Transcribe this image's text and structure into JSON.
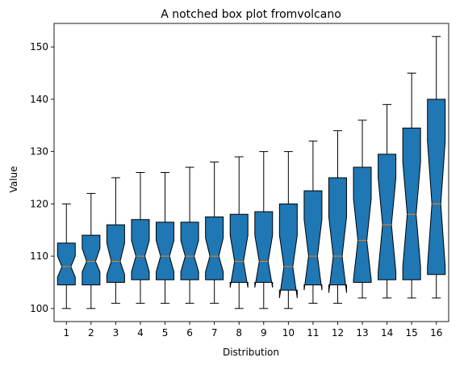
{
  "chart_data": {
    "type": "box",
    "notched": true,
    "title": "A notched box plot fromvolcano",
    "xlabel": "Distribution",
    "ylabel": "Value",
    "ylim": [
      97.5,
      154.5
    ],
    "yticks": [
      100,
      110,
      120,
      130,
      140,
      150
    ],
    "categories": [
      "1",
      "2",
      "3",
      "4",
      "5",
      "6",
      "7",
      "8",
      "9",
      "10",
      "11",
      "12",
      "13",
      "14",
      "15",
      "16"
    ],
    "box_color": "#1f77b4",
    "median_color": "#ff7f0e",
    "boxes": [
      {
        "whisker_low": 100,
        "q1": 104.5,
        "median": 108,
        "q3": 112.5,
        "whisker_high": 120,
        "notch_low": 106,
        "notch_high": 110
      },
      {
        "whisker_low": 100,
        "q1": 104.5,
        "median": 109,
        "q3": 114,
        "whisker_high": 122,
        "notch_low": 107,
        "notch_high": 111.5
      },
      {
        "whisker_low": 101,
        "q1": 105,
        "median": 109,
        "q3": 116,
        "whisker_high": 125,
        "notch_low": 106.5,
        "notch_high": 112.5
      },
      {
        "whisker_low": 101,
        "q1": 105.5,
        "median": 110,
        "q3": 117,
        "whisker_high": 126,
        "notch_low": 107,
        "notch_high": 113
      },
      {
        "whisker_low": 101,
        "q1": 105.5,
        "median": 110,
        "q3": 116.5,
        "whisker_high": 126,
        "notch_low": 107,
        "notch_high": 113
      },
      {
        "whisker_low": 101,
        "q1": 105.5,
        "median": 110,
        "q3": 116.5,
        "whisker_high": 127,
        "notch_low": 107,
        "notch_high": 113
      },
      {
        "whisker_low": 101,
        "q1": 105.5,
        "median": 110,
        "q3": 117.5,
        "whisker_high": 128,
        "notch_low": 107,
        "notch_high": 113.5
      },
      {
        "whisker_low": 100,
        "q1": 105,
        "median": 109,
        "q3": 118,
        "whisker_high": 129,
        "notch_low": 104,
        "notch_high": 114
      },
      {
        "whisker_low": 100,
        "q1": 105,
        "median": 109,
        "q3": 118.5,
        "whisker_high": 130,
        "notch_low": 104,
        "notch_high": 114
      },
      {
        "whisker_low": 100,
        "q1": 103.5,
        "median": 108,
        "q3": 120,
        "whisker_high": 130,
        "notch_low": 102,
        "notch_high": 114
      },
      {
        "whisker_low": 101,
        "q1": 104.5,
        "median": 110,
        "q3": 122.5,
        "whisker_high": 132,
        "notch_low": 103.5,
        "notch_high": 117
      },
      {
        "whisker_low": 101,
        "q1": 104.5,
        "median": 110,
        "q3": 125,
        "whisker_high": 134,
        "notch_low": 103,
        "notch_high": 117.5
      },
      {
        "whisker_low": 102,
        "q1": 105,
        "median": 113,
        "q3": 127,
        "whisker_high": 136,
        "notch_low": 105.5,
        "notch_high": 121
      },
      {
        "whisker_low": 102,
        "q1": 105.5,
        "median": 116,
        "q3": 129.5,
        "whisker_high": 139,
        "notch_low": 107,
        "notch_high": 125
      },
      {
        "whisker_low": 102,
        "q1": 105.5,
        "median": 118,
        "q3": 134.5,
        "whisker_high": 145,
        "notch_low": 108,
        "notch_high": 128
      },
      {
        "whisker_low": 102,
        "q1": 106.5,
        "median": 120,
        "q3": 140,
        "whisker_high": 152,
        "notch_low": 108,
        "notch_high": 132
      }
    ]
  }
}
